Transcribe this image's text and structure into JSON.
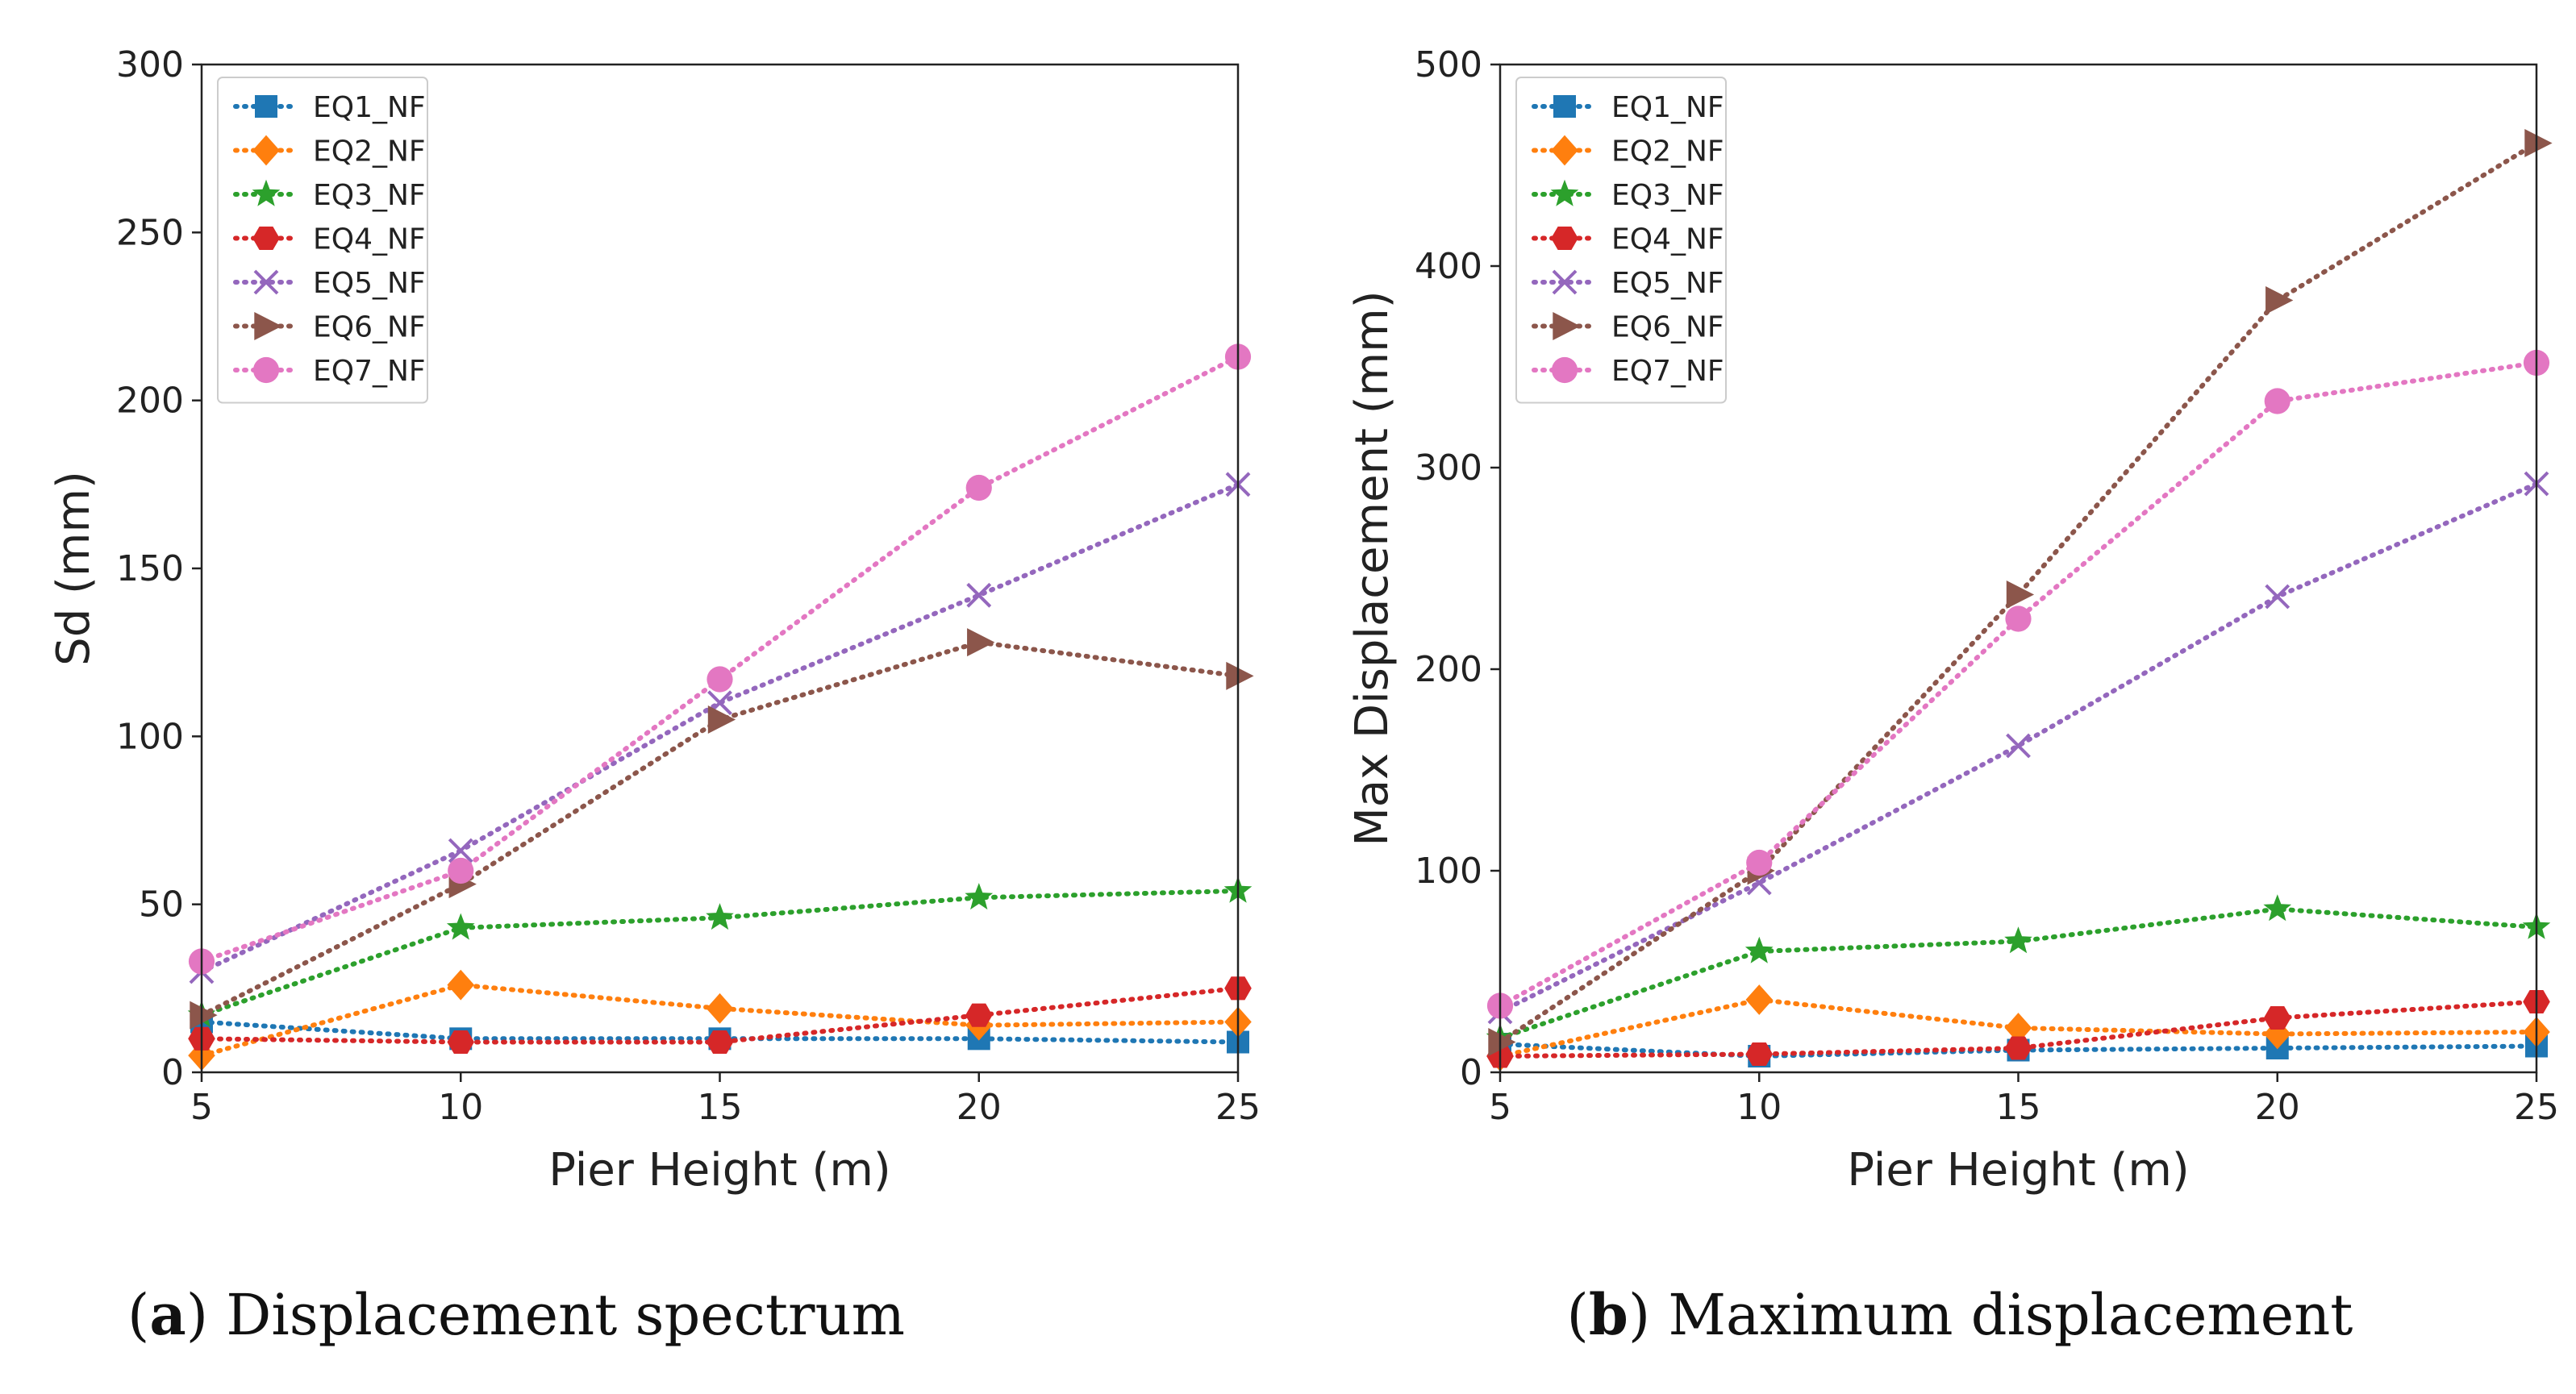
{
  "colors": {
    "EQ1_NF": "#1f77b4",
    "EQ2_NF": "#ff7f0e",
    "EQ3_NF": "#2ca02c",
    "EQ4_NF": "#d62728",
    "EQ5_NF": "#9467bd",
    "EQ6_NF": "#8c564b",
    "EQ7_NF": "#e377c2"
  },
  "markers": {
    "EQ1_NF": "square",
    "EQ2_NF": "diamond",
    "EQ3_NF": "star",
    "EQ4_NF": "hexagon",
    "EQ5_NF": "x",
    "EQ6_NF": "triangle-right",
    "EQ7_NF": "circle"
  },
  "captions": [
    {
      "letter": "a",
      "open": "(",
      "close": ")",
      "text": " Displacement spectrum"
    },
    {
      "letter": "b",
      "open": "(",
      "close": ")",
      "text": " Maximum displacement"
    }
  ],
  "chart_data": [
    {
      "type": "line",
      "title": "",
      "xlabel": "Pier Height (m)",
      "ylabel": "Sd (mm)",
      "x": [
        5,
        10,
        15,
        20,
        25
      ],
      "xlim": [
        5,
        25
      ],
      "ylim": [
        0,
        300
      ],
      "xticks": [
        5,
        10,
        15,
        20,
        25
      ],
      "yticks": [
        0,
        50,
        100,
        150,
        200,
        250,
        300
      ],
      "grid": false,
      "legend_position": "top-left",
      "line_style": "dotted",
      "series": [
        {
          "name": "EQ1_NF",
          "values": [
            15,
            10,
            10,
            10,
            9
          ]
        },
        {
          "name": "EQ2_NF",
          "values": [
            5,
            26,
            19,
            14,
            15
          ]
        },
        {
          "name": "EQ3_NF",
          "values": [
            17,
            43,
            46,
            52,
            54
          ]
        },
        {
          "name": "EQ4_NF",
          "values": [
            10,
            9,
            9,
            17,
            25
          ]
        },
        {
          "name": "EQ5_NF",
          "values": [
            30,
            66,
            110,
            142,
            175
          ]
        },
        {
          "name": "EQ6_NF",
          "values": [
            17,
            56,
            105,
            128,
            118
          ]
        },
        {
          "name": "EQ7_NF",
          "values": [
            33,
            60,
            117,
            174,
            213
          ]
        }
      ]
    },
    {
      "type": "line",
      "title": "",
      "xlabel": "Pier Height (m)",
      "ylabel": "Max Displacement (mm)",
      "x": [
        5,
        10,
        15,
        20,
        25
      ],
      "xlim": [
        5,
        25
      ],
      "ylim": [
        0,
        500
      ],
      "xticks": [
        5,
        10,
        15,
        20,
        25
      ],
      "yticks": [
        0,
        100,
        200,
        300,
        400,
        500
      ],
      "grid": false,
      "legend_position": "top-left",
      "line_style": "dotted",
      "series": [
        {
          "name": "EQ1_NF",
          "values": [
            14,
            8,
            11,
            12,
            13
          ]
        },
        {
          "name": "EQ2_NF",
          "values": [
            8,
            36,
            22,
            19,
            20
          ]
        },
        {
          "name": "EQ3_NF",
          "values": [
            17,
            60,
            65,
            81,
            72
          ]
        },
        {
          "name": "EQ4_NF",
          "values": [
            8,
            9,
            12,
            27,
            35
          ]
        },
        {
          "name": "EQ5_NF",
          "values": [
            30,
            94,
            162,
            236,
            292
          ]
        },
        {
          "name": "EQ6_NF",
          "values": [
            15,
            100,
            237,
            383,
            461
          ]
        },
        {
          "name": "EQ7_NF",
          "values": [
            33,
            104,
            225,
            333,
            352
          ]
        }
      ]
    }
  ]
}
